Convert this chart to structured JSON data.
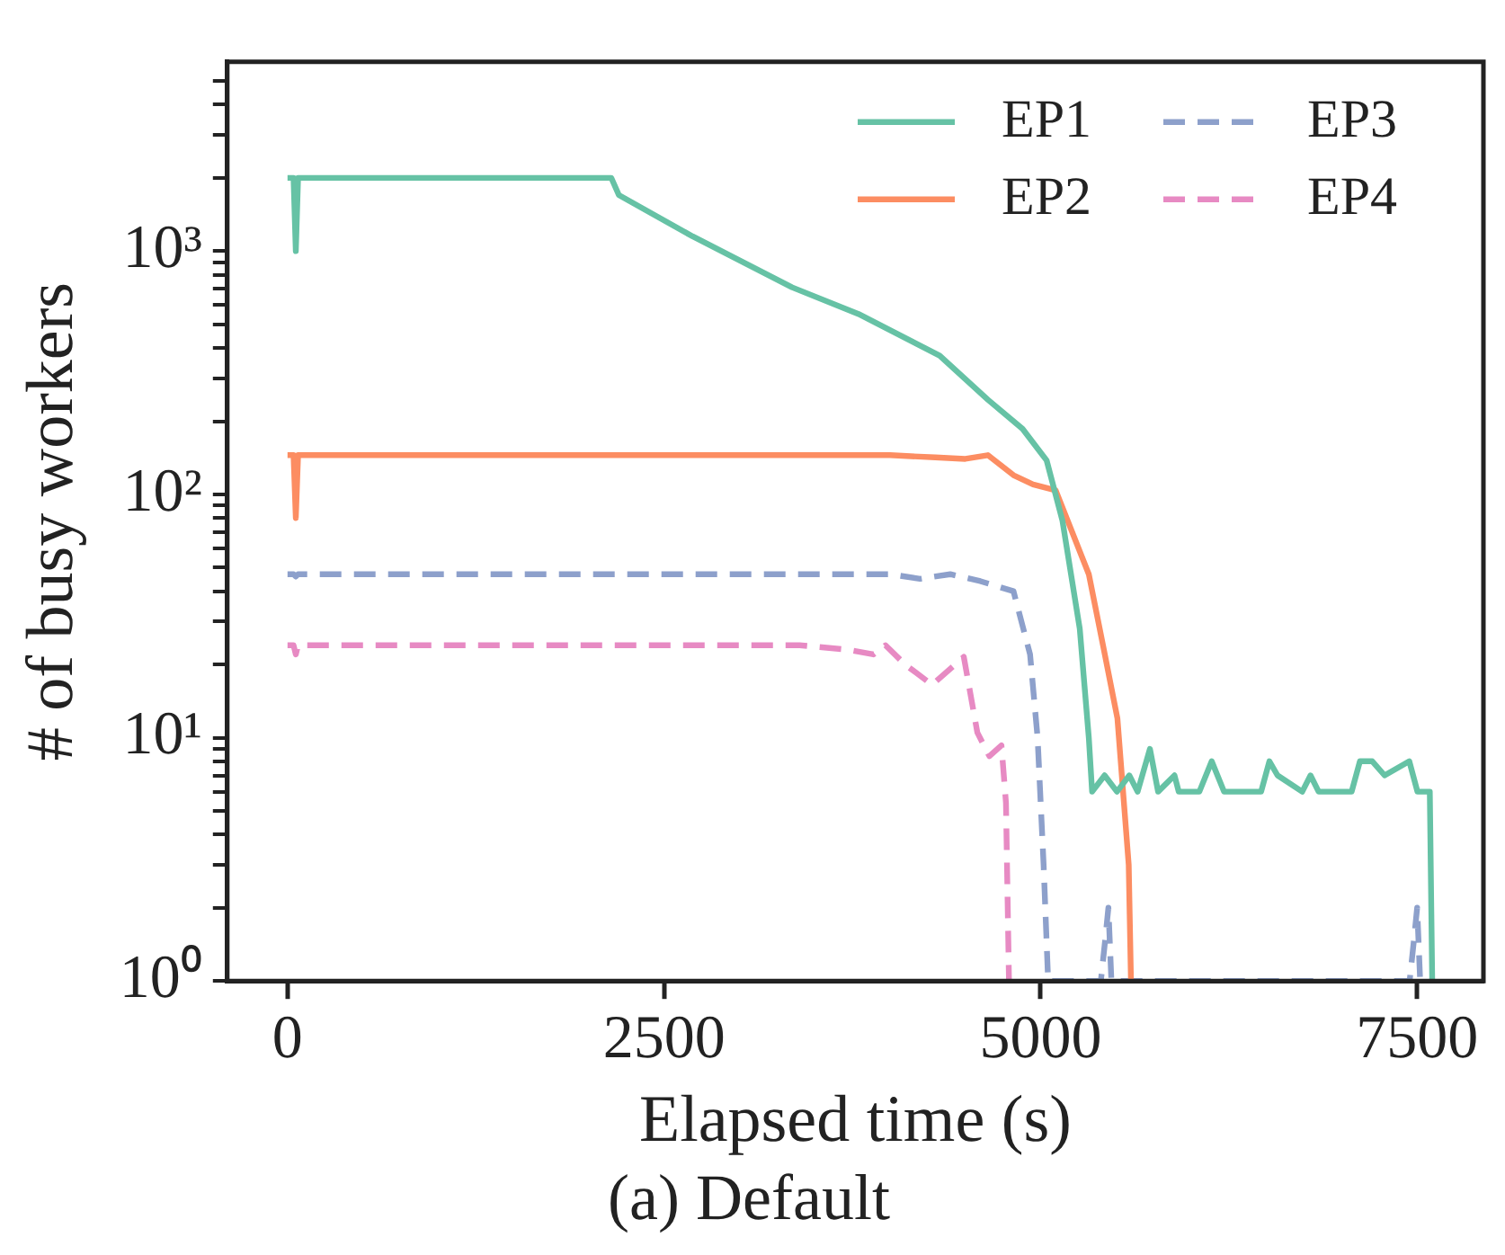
{
  "chart_data": {
    "type": "line",
    "xlabel": "Elapsed time (s)",
    "ylabel": "# of busy workers",
    "annotations": [
      "(a) Default"
    ],
    "log": "y",
    "grid": false,
    "legend": "top right",
    "marker": "none",
    "xlim": [
      -400,
      7940
    ],
    "xticks": [
      0,
      2500,
      5000,
      7500
    ],
    "ylim": [
      1,
      6000
    ],
    "yticks": [
      {
        "value": 1,
        "label": "10⁰"
      },
      {
        "value": 2,
        "label": null
      },
      {
        "value": 3,
        "label": null
      },
      {
        "value": 4,
        "label": null
      },
      {
        "value": 5,
        "label": null
      },
      {
        "value": 6,
        "label": null
      },
      {
        "value": 7,
        "label": null
      },
      {
        "value": 8,
        "label": null
      },
      {
        "value": 9,
        "label": null
      },
      {
        "value": 10,
        "label": "10¹"
      },
      {
        "value": 20,
        "label": null
      },
      {
        "value": 30,
        "label": null
      },
      {
        "value": 40,
        "label": null
      },
      {
        "value": 50,
        "label": null
      },
      {
        "value": 60,
        "label": null
      },
      {
        "value": 70,
        "label": null
      },
      {
        "value": 80,
        "label": null
      },
      {
        "value": 90,
        "label": null
      },
      {
        "value": 100,
        "label": "10²"
      },
      {
        "value": 200,
        "label": null
      },
      {
        "value": 300,
        "label": null
      },
      {
        "value": 400,
        "label": null
      },
      {
        "value": 500,
        "label": null
      },
      {
        "value": 600,
        "label": null
      },
      {
        "value": 700,
        "label": null
      },
      {
        "value": 800,
        "label": null
      },
      {
        "value": 900,
        "label": null
      },
      {
        "value": 1000,
        "label": "10³"
      },
      {
        "value": 2000,
        "label": null
      },
      {
        "value": 3000,
        "label": null
      },
      {
        "value": 4000,
        "label": null
      },
      {
        "value": 5000,
        "label": null
      }
    ],
    "series": [
      {
        "name": "EP1",
        "color": "#66c2a5",
        "line_style": "solid",
        "x": [
          0,
          40,
          55,
          70,
          2150,
          2200,
          2690,
          3350,
          3790,
          4330,
          4650,
          4880,
          5040,
          5145,
          5260,
          5320,
          5342,
          5425,
          5507,
          5589,
          5644,
          5726,
          5780,
          5889,
          5917,
          6054,
          6136,
          6218,
          6464,
          6519,
          6573,
          6737,
          6792,
          6846,
          7065,
          7120,
          7202,
          7284,
          7448,
          7502,
          7584,
          7600
        ],
        "values": [
          2000,
          2000,
          1000,
          2000,
          2000,
          1700,
          1150,
          710,
          552,
          372,
          245,
          186,
          138,
          78,
          28,
          10,
          6,
          7,
          6,
          7,
          6,
          9,
          6,
          7,
          6,
          6,
          8,
          6,
          6,
          8,
          7,
          6,
          7,
          6,
          6,
          8,
          8,
          7,
          8,
          6,
          6,
          1
        ]
      },
      {
        "name": "EP2",
        "color": "#fc8d62",
        "line_style": "solid",
        "x": [
          0,
          40,
          55,
          70,
          1000,
          2000,
          3000,
          4000,
          4300,
          4500,
          4650,
          4820,
          4950,
          5100,
          5320,
          5420,
          5510,
          5585,
          5600
        ],
        "values": [
          145,
          145,
          80,
          145,
          145,
          145,
          145,
          145,
          142,
          140,
          145,
          120,
          110,
          104,
          47,
          23,
          12,
          3,
          1
        ]
      },
      {
        "name": "EP3",
        "color": "#8da0cb",
        "line_style": "dashed",
        "x": [
          0,
          40,
          55,
          70,
          3000,
          4000,
          4200,
          4400,
          4600,
          4820,
          4930,
          4980,
          5020,
          5050,
          5400,
          5430,
          5450,
          5470,
          5500,
          7450,
          7480,
          7500,
          7520,
          7550
        ],
        "values": [
          47,
          47,
          46,
          47,
          47,
          47,
          45,
          47,
          44,
          40,
          22,
          10,
          3,
          1,
          1,
          1.5,
          2,
          1,
          1,
          1,
          1.5,
          2,
          1,
          1
        ]
      },
      {
        "name": "EP4",
        "color": "#e78ac3",
        "line_style": "dashed",
        "x": [
          0,
          40,
          55,
          70,
          3400,
          3720,
          3890,
          3970,
          4100,
          4280,
          4490,
          4580,
          4660,
          4740,
          4770,
          4790
        ],
        "values": [
          24,
          24,
          22,
          24,
          24,
          23,
          22,
          24,
          20,
          16.5,
          21.5,
          10.5,
          8.4,
          9.3,
          5.4,
          1
        ]
      }
    ]
  }
}
